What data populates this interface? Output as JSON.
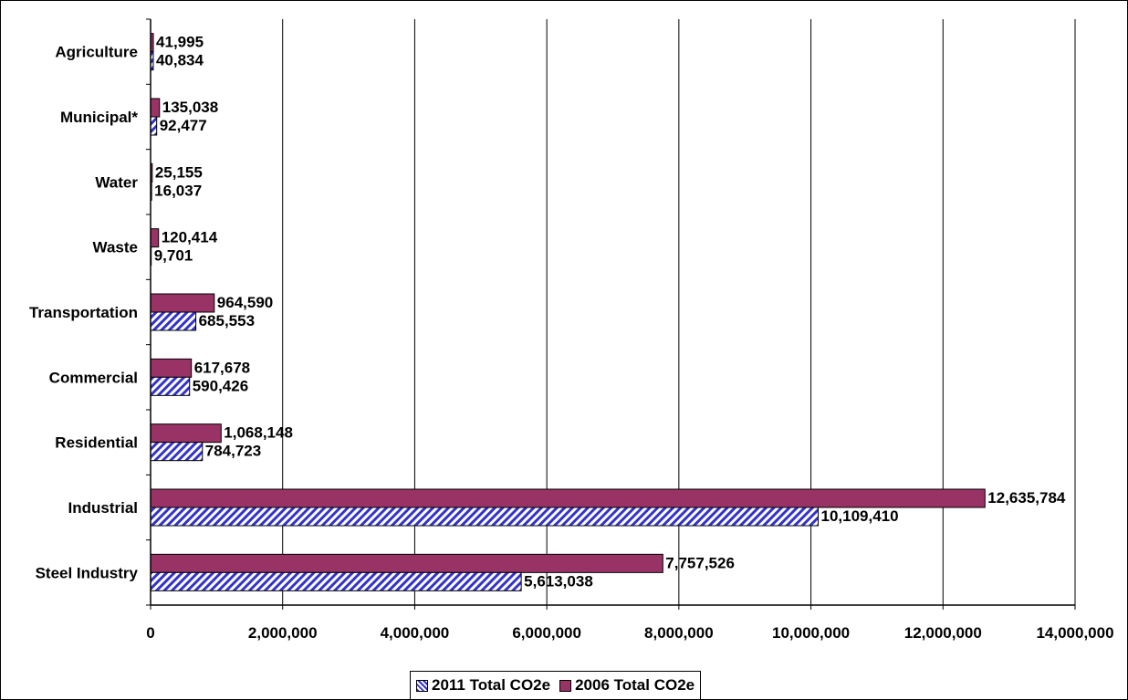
{
  "chart_data": {
    "type": "bar",
    "orientation": "horizontal",
    "categories": [
      "Steel Industry",
      "Industrial",
      "Residential",
      "Commercial",
      "Transportation",
      "Waste",
      "Water",
      "Municipal*",
      "Agriculture"
    ],
    "series": [
      {
        "name": "2011 Total CO2e",
        "values": [
          5613038,
          10109410,
          784723,
          590426,
          685553,
          9701,
          16037,
          92477,
          40834
        ],
        "labels": [
          "5,613,038",
          "10,109,410",
          "784,723",
          "590,426",
          "685,553",
          "9,701",
          "16,037",
          "92,477",
          "40,834"
        ],
        "color": "#3333cc",
        "pattern": "diagonal-hatch"
      },
      {
        "name": "2006 Total CO2e",
        "values": [
          7757526,
          12635784,
          1068148,
          617678,
          964590,
          120414,
          25155,
          135038,
          41995
        ],
        "labels": [
          "7,757,526",
          "12,635,784",
          "1,068,148",
          "617,678",
          "964,590",
          "120,414",
          "25,155",
          "135,038",
          "41,995"
        ],
        "color": "#993366",
        "pattern": "solid"
      }
    ],
    "xlim": [
      0,
      14000000
    ],
    "xticks": [
      0,
      2000000,
      4000000,
      6000000,
      8000000,
      10000000,
      12000000,
      14000000
    ],
    "xtick_labels": [
      "0",
      "2,000,000",
      "4,000,000",
      "6,000,000",
      "8,000,000",
      "10,000,000",
      "12,000,000",
      "14,000,000"
    ],
    "grid": true,
    "legend_position": "bottom",
    "title": "",
    "xlabel": "",
    "ylabel": ""
  }
}
